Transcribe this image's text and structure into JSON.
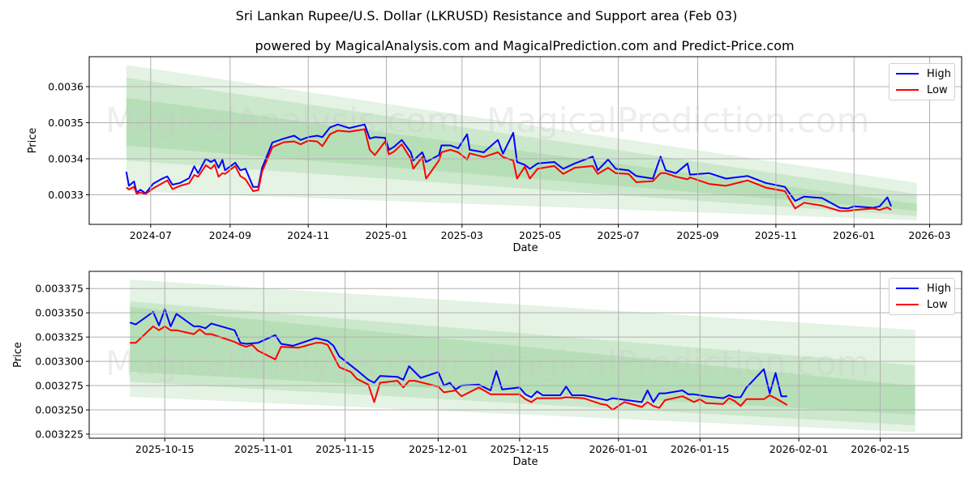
{
  "title": "Sri Lankan Rupee/U.S. Dollar (LKRUSD) Resistance and Support area (Feb 03)",
  "subtitle": "powered by MagicalAnalysis.com and MagicalPrediction.com and Predict-Price.com",
  "watermarks": [
    "MagicalAnalysis.com",
    "MagicalPrediction.com"
  ],
  "colors": {
    "high": "#0000ff",
    "low": "#ff0000",
    "band": "#2ca02c",
    "grid": "#b0b0b0"
  },
  "chart_data": [
    {
      "type": "line",
      "xlabel": "Date",
      "ylabel": "Price",
      "xlim": [
        "2024-05-14",
        "2026-03-26"
      ],
      "ylim": [
        0.003218,
        0.003683
      ],
      "grid": true,
      "legend": "top-right",
      "legend_entries": [
        "High",
        "Low"
      ],
      "xticks": [
        "2024-07",
        "2024-09",
        "2024-11",
        "2025-01",
        "2025-03",
        "2025-05",
        "2025-07",
        "2025-09",
        "2025-11",
        "2026-01",
        "2026-03"
      ],
      "yticks": [
        "0.0033",
        "0.0034",
        "0.0035",
        "0.0036"
      ],
      "bands": [
        {
          "start": "2024-06-12",
          "end": "2026-02-19",
          "lower": [
            0.00331,
            0.003229
          ],
          "upper": [
            0.00366,
            0.003333
          ]
        },
        {
          "start": "2024-06-12",
          "end": "2026-02-19",
          "lower": [
            0.003395,
            0.003241
          ],
          "upper": [
            0.003625,
            0.003302
          ]
        },
        {
          "start": "2024-06-12",
          "end": "2026-02-19",
          "lower": [
            0.003437,
            0.003256
          ],
          "upper": [
            0.003569,
            0.003275
          ]
        }
      ],
      "x": [
        "2024-06-12",
        "2024-06-14",
        "2024-06-18",
        "2024-06-20",
        "2024-06-23",
        "2024-06-27",
        "2024-07-03",
        "2024-07-10",
        "2024-07-14",
        "2024-07-18",
        "2024-07-24",
        "2024-07-31",
        "2024-08-04",
        "2024-08-07",
        "2024-08-13",
        "2024-08-17",
        "2024-08-20",
        "2024-08-23",
        "2024-08-26",
        "2024-08-28",
        "2024-09-05",
        "2024-09-09",
        "2024-09-13",
        "2024-09-19",
        "2024-09-23",
        "2024-09-26",
        "2024-10-04",
        "2024-10-13",
        "2024-10-21",
        "2024-10-26",
        "2024-11-01",
        "2024-11-08",
        "2024-11-12",
        "2024-11-18",
        "2024-11-24",
        "2024-12-03",
        "2024-12-15",
        "2024-12-19",
        "2024-12-23",
        "2024-12-31",
        "2025-01-03",
        "2025-01-07",
        "2025-01-13",
        "2025-01-20",
        "2025-01-22",
        "2025-01-29",
        "2025-02-01",
        "2025-02-11",
        "2025-02-13",
        "2025-02-20",
        "2025-02-26",
        "2025-03-05",
        "2025-03-07",
        "2025-03-18",
        "2025-03-29",
        "2025-04-02",
        "2025-04-10",
        "2025-04-13",
        "2025-04-19",
        "2025-04-23",
        "2025-04-29",
        "2025-05-12",
        "2025-05-19",
        "2025-05-28",
        "2025-06-11",
        "2025-06-15",
        "2025-06-23",
        "2025-06-29",
        "2025-07-09",
        "2025-07-15",
        "2025-07-28",
        "2025-08-03",
        "2025-08-07",
        "2025-08-15",
        "2025-08-24",
        "2025-08-26",
        "2025-09-10",
        "2025-09-23",
        "2025-10-10",
        "2025-10-24",
        "2025-11-08",
        "2025-11-16",
        "2025-11-23",
        "2025-12-07",
        "2025-12-21",
        "2025-12-27",
        "2026-01-01",
        "2026-01-16",
        "2026-01-21",
        "2026-01-27",
        "2026-01-30"
      ],
      "series": [
        {
          "name": "High",
          "values": [
            0.003364,
            0.003325,
            0.003337,
            0.003306,
            0.003314,
            0.003304,
            0.003331,
            0.003345,
            0.003351,
            0.003328,
            0.003333,
            0.003346,
            0.003379,
            0.00336,
            0.0034,
            0.003391,
            0.003397,
            0.003375,
            0.003397,
            0.003368,
            0.003389,
            0.003368,
            0.003372,
            0.003322,
            0.003322,
            0.003375,
            0.003445,
            0.003456,
            0.003464,
            0.003452,
            0.00346,
            0.003464,
            0.00346,
            0.003487,
            0.003495,
            0.003485,
            0.003495,
            0.003456,
            0.00346,
            0.003458,
            0.003425,
            0.003433,
            0.003452,
            0.003418,
            0.003395,
            0.003418,
            0.003391,
            0.00341,
            0.003437,
            0.003437,
            0.003429,
            0.003468,
            0.003425,
            0.003418,
            0.003452,
            0.003414,
            0.003472,
            0.003391,
            0.003383,
            0.003372,
            0.003387,
            0.003391,
            0.003372,
            0.003387,
            0.003406,
            0.003368,
            0.003398,
            0.003372,
            0.003368,
            0.003352,
            0.003345,
            0.003406,
            0.003368,
            0.00336,
            0.003387,
            0.003356,
            0.00336,
            0.003345,
            0.003352,
            0.003333,
            0.003322,
            0.003283,
            0.003295,
            0.003291,
            0.003264,
            0.003262,
            0.003268,
            0.003264,
            0.003268,
            0.003293,
            0.003268
          ]
        },
        {
          "name": "Low",
          "values": [
            0.00332,
            0.003315,
            0.003322,
            0.003303,
            0.003306,
            0.003302,
            0.003318,
            0.003332,
            0.00334,
            0.003316,
            0.003325,
            0.003332,
            0.003355,
            0.00335,
            0.003382,
            0.003372,
            0.003383,
            0.00335,
            0.00336,
            0.003358,
            0.00338,
            0.003352,
            0.003343,
            0.00331,
            0.003313,
            0.003365,
            0.003432,
            0.003446,
            0.003448,
            0.00344,
            0.00345,
            0.003448,
            0.003435,
            0.003468,
            0.003478,
            0.003475,
            0.003482,
            0.003425,
            0.00341,
            0.003448,
            0.003412,
            0.00342,
            0.00344,
            0.0034,
            0.003372,
            0.003405,
            0.003345,
            0.003395,
            0.003418,
            0.003425,
            0.003418,
            0.003398,
            0.003415,
            0.003405,
            0.003418,
            0.003405,
            0.003395,
            0.003345,
            0.003378,
            0.003345,
            0.003372,
            0.00338,
            0.003358,
            0.003375,
            0.00338,
            0.003358,
            0.003375,
            0.00336,
            0.003358,
            0.003335,
            0.003338,
            0.00336,
            0.00336,
            0.00335,
            0.003343,
            0.003348,
            0.00333,
            0.003325,
            0.00334,
            0.00332,
            0.00331,
            0.003262,
            0.003278,
            0.00327,
            0.003255,
            0.003255,
            0.003258,
            0.003262,
            0.003258,
            0.003265,
            0.003258
          ]
        }
      ]
    },
    {
      "type": "line",
      "xlabel": "Date",
      "ylabel": "Price",
      "xlim": [
        "2025-10-02",
        "2026-03-01"
      ],
      "ylim": [
        0.0032208,
        0.0033927
      ],
      "grid": true,
      "legend": "top-right",
      "legend_entries": [
        "High",
        "Low"
      ],
      "xticks": [
        "2025-10-15",
        "2025-11-01",
        "2025-11-15",
        "2025-12-01",
        "2025-12-15",
        "2026-01-01",
        "2026-01-15",
        "2026-02-01",
        "2026-02-15"
      ],
      "yticks": [
        "0.003225",
        "0.003250",
        "0.003275",
        "0.003300",
        "0.003325",
        "0.003350",
        "0.003375"
      ],
      "bands": [
        {
          "start": "2025-10-09",
          "end": "2026-02-21",
          "lower": [
            0.0032635,
            0.003227
          ],
          "upper": [
            0.0033843,
            0.0033323
          ]
        },
        {
          "start": "2025-10-09",
          "end": "2026-02-21",
          "lower": [
            0.0032789,
            0.003234
          ],
          "upper": [
            0.0033618,
            0.0032958
          ]
        },
        {
          "start": "2025-10-09",
          "end": "2026-02-21",
          "lower": [
            0.0032893,
            0.0032452
          ],
          "upper": [
            0.0033562,
            0.0032747
          ]
        }
      ],
      "series": [
        {
          "name": "High",
          "x": [
            "2025-10-09",
            "2025-10-10",
            "2025-10-13",
            "2025-10-14",
            "2025-10-15",
            "2025-10-16",
            "2025-10-17",
            "2025-10-20",
            "2025-10-21",
            "2025-10-22",
            "2025-10-23",
            "2025-10-27",
            "2025-10-28",
            "2025-10-29",
            "2025-10-31",
            "2025-11-03",
            "2025-11-04",
            "2025-11-06",
            "2025-11-10",
            "2025-11-12",
            "2025-11-13",
            "2025-11-14",
            "2025-11-17",
            "2025-11-19",
            "2025-11-20",
            "2025-11-21",
            "2025-11-24",
            "2025-11-25",
            "2025-11-26",
            "2025-11-28",
            "2025-12-01",
            "2025-12-02",
            "2025-12-03",
            "2025-12-04",
            "2025-12-05",
            "2025-12-08",
            "2025-12-10",
            "2025-12-11",
            "2025-12-12",
            "2025-12-15",
            "2025-12-16",
            "2025-12-17",
            "2025-12-18",
            "2025-12-19",
            "2025-12-22",
            "2025-12-23",
            "2025-12-24",
            "2025-12-26",
            "2025-12-30",
            "2025-12-31",
            "2026-01-05",
            "2026-01-06",
            "2026-01-07",
            "2026-01-08",
            "2026-01-09",
            "2026-01-12",
            "2026-01-13",
            "2026-01-14",
            "2026-01-15",
            "2026-01-16",
            "2026-01-19",
            "2026-01-20",
            "2026-01-21",
            "2026-01-22",
            "2026-01-23",
            "2026-01-26",
            "2026-01-27",
            "2026-01-28",
            "2026-01-29",
            "2026-01-30"
          ],
          "values": [
            0.00334,
            0.003338,
            0.003351,
            0.003337,
            0.003354,
            0.003336,
            0.003349,
            0.003336,
            0.003336,
            0.003334,
            0.003339,
            0.003332,
            0.003319,
            0.003318,
            0.003319,
            0.003327,
            0.003318,
            0.003316,
            0.003324,
            0.003321,
            0.003316,
            0.003305,
            0.003291,
            0.003281,
            0.003278,
            0.003285,
            0.003284,
            0.003281,
            0.003295,
            0.003283,
            0.003289,
            0.003275,
            0.003278,
            0.003271,
            0.003275,
            0.003276,
            0.00327,
            0.00329,
            0.003271,
            0.003273,
            0.003266,
            0.003263,
            0.003269,
            0.003265,
            0.003265,
            0.003274,
            0.003265,
            0.003265,
            0.00326,
            0.003262,
            0.003258,
            0.00327,
            0.003258,
            0.003267,
            0.003267,
            0.00327,
            0.003266,
            0.003266,
            0.003265,
            0.003264,
            0.003262,
            0.003265,
            0.003263,
            0.003263,
            0.003273,
            0.003292,
            0.003267,
            0.003288,
            0.003264,
            0.003264
          ]
        },
        {
          "name": "Low",
          "x": [
            "2025-10-09",
            "2025-10-10",
            "2025-10-13",
            "2025-10-14",
            "2025-10-15",
            "2025-10-16",
            "2025-10-17",
            "2025-10-20",
            "2025-10-21",
            "2025-10-22",
            "2025-10-23",
            "2025-10-27",
            "2025-10-28",
            "2025-10-29",
            "2025-10-30",
            "2025-10-31",
            "2025-11-03",
            "2025-11-04",
            "2025-11-07",
            "2025-11-10",
            "2025-11-11",
            "2025-11-12",
            "2025-11-14",
            "2025-11-16",
            "2025-11-17",
            "2025-11-19",
            "2025-11-20",
            "2025-11-21",
            "2025-11-24",
            "2025-11-25",
            "2025-11-26",
            "2025-11-27",
            "2025-12-01",
            "2025-12-02",
            "2025-12-04",
            "2025-12-05",
            "2025-12-08",
            "2025-12-10",
            "2025-12-15",
            "2025-12-16",
            "2025-12-17",
            "2025-12-18",
            "2025-12-22",
            "2025-12-23",
            "2025-12-26",
            "2025-12-29",
            "2025-12-30",
            "2025-12-31",
            "2026-01-02",
            "2026-01-05",
            "2026-01-06",
            "2026-01-07",
            "2026-01-08",
            "2026-01-09",
            "2026-01-12",
            "2026-01-13",
            "2026-01-14",
            "2026-01-15",
            "2026-01-16",
            "2026-01-19",
            "2026-01-20",
            "2026-01-21",
            "2026-01-22",
            "2026-01-23",
            "2026-01-26",
            "2026-01-27",
            "2026-01-28",
            "2026-01-30"
          ],
          "values": [
            0.003319,
            0.003319,
            0.003336,
            0.003332,
            0.003336,
            0.003332,
            0.003332,
            0.003328,
            0.003333,
            0.003328,
            0.003328,
            0.00332,
            0.003317,
            0.003315,
            0.003317,
            0.003311,
            0.003302,
            0.003315,
            0.003314,
            0.003319,
            0.003319,
            0.003317,
            0.003294,
            0.003289,
            0.003282,
            0.003276,
            0.003258,
            0.003278,
            0.00328,
            0.003273,
            0.00328,
            0.00328,
            0.003274,
            0.003268,
            0.00327,
            0.003264,
            0.003273,
            0.003266,
            0.003266,
            0.003261,
            0.003258,
            0.003262,
            0.003262,
            0.003263,
            0.003262,
            0.003256,
            0.003255,
            0.00325,
            0.003258,
            0.003253,
            0.003258,
            0.003254,
            0.003252,
            0.00326,
            0.003264,
            0.003261,
            0.003258,
            0.003261,
            0.003257,
            0.003256,
            0.003262,
            0.003259,
            0.003254,
            0.003261,
            0.003261,
            0.003265,
            0.003262,
            0.003255
          ]
        }
      ]
    }
  ]
}
